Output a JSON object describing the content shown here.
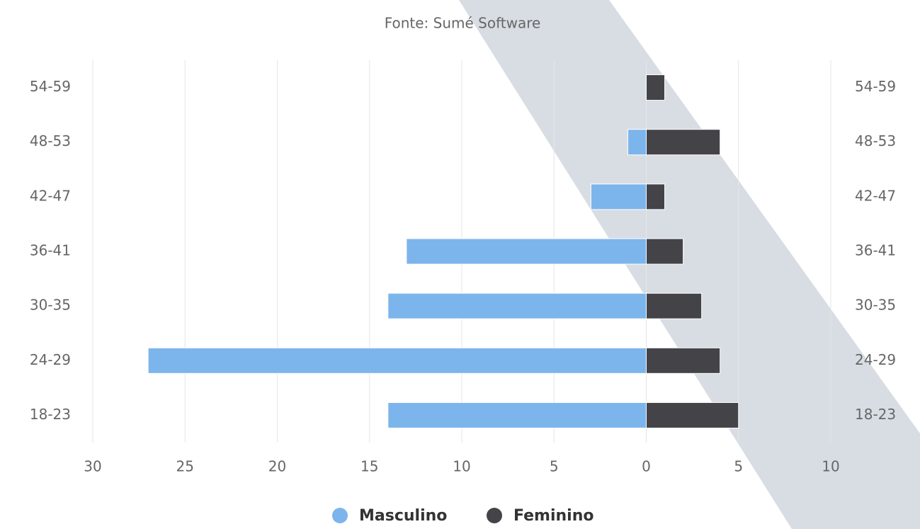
{
  "chart_data": {
    "type": "bar",
    "orientation": "horizontal",
    "stacked": true,
    "subtitle": "Fonte: Sumé Software",
    "categories": [
      "18-23",
      "24-29",
      "30-35",
      "36-41",
      "42-47",
      "48-53",
      "54-59"
    ],
    "series": [
      {
        "name": "Masculino",
        "color": "#7cb5ec",
        "values": [
          -14,
          -27,
          -14,
          -13,
          -3,
          -1,
          0
        ]
      },
      {
        "name": "Feminino",
        "color": "#434348",
        "values": [
          5,
          4,
          3,
          2,
          1,
          4,
          1
        ]
      }
    ],
    "xlim": [
      -30,
      10
    ],
    "xticks": [
      {
        "value": -30,
        "label": "30"
      },
      {
        "value": -25,
        "label": "25"
      },
      {
        "value": -20,
        "label": "20"
      },
      {
        "value": -15,
        "label": "15"
      },
      {
        "value": -10,
        "label": "10"
      },
      {
        "value": -5,
        "label": "5"
      },
      0,
      5,
      10
    ],
    "grid": true
  }
}
